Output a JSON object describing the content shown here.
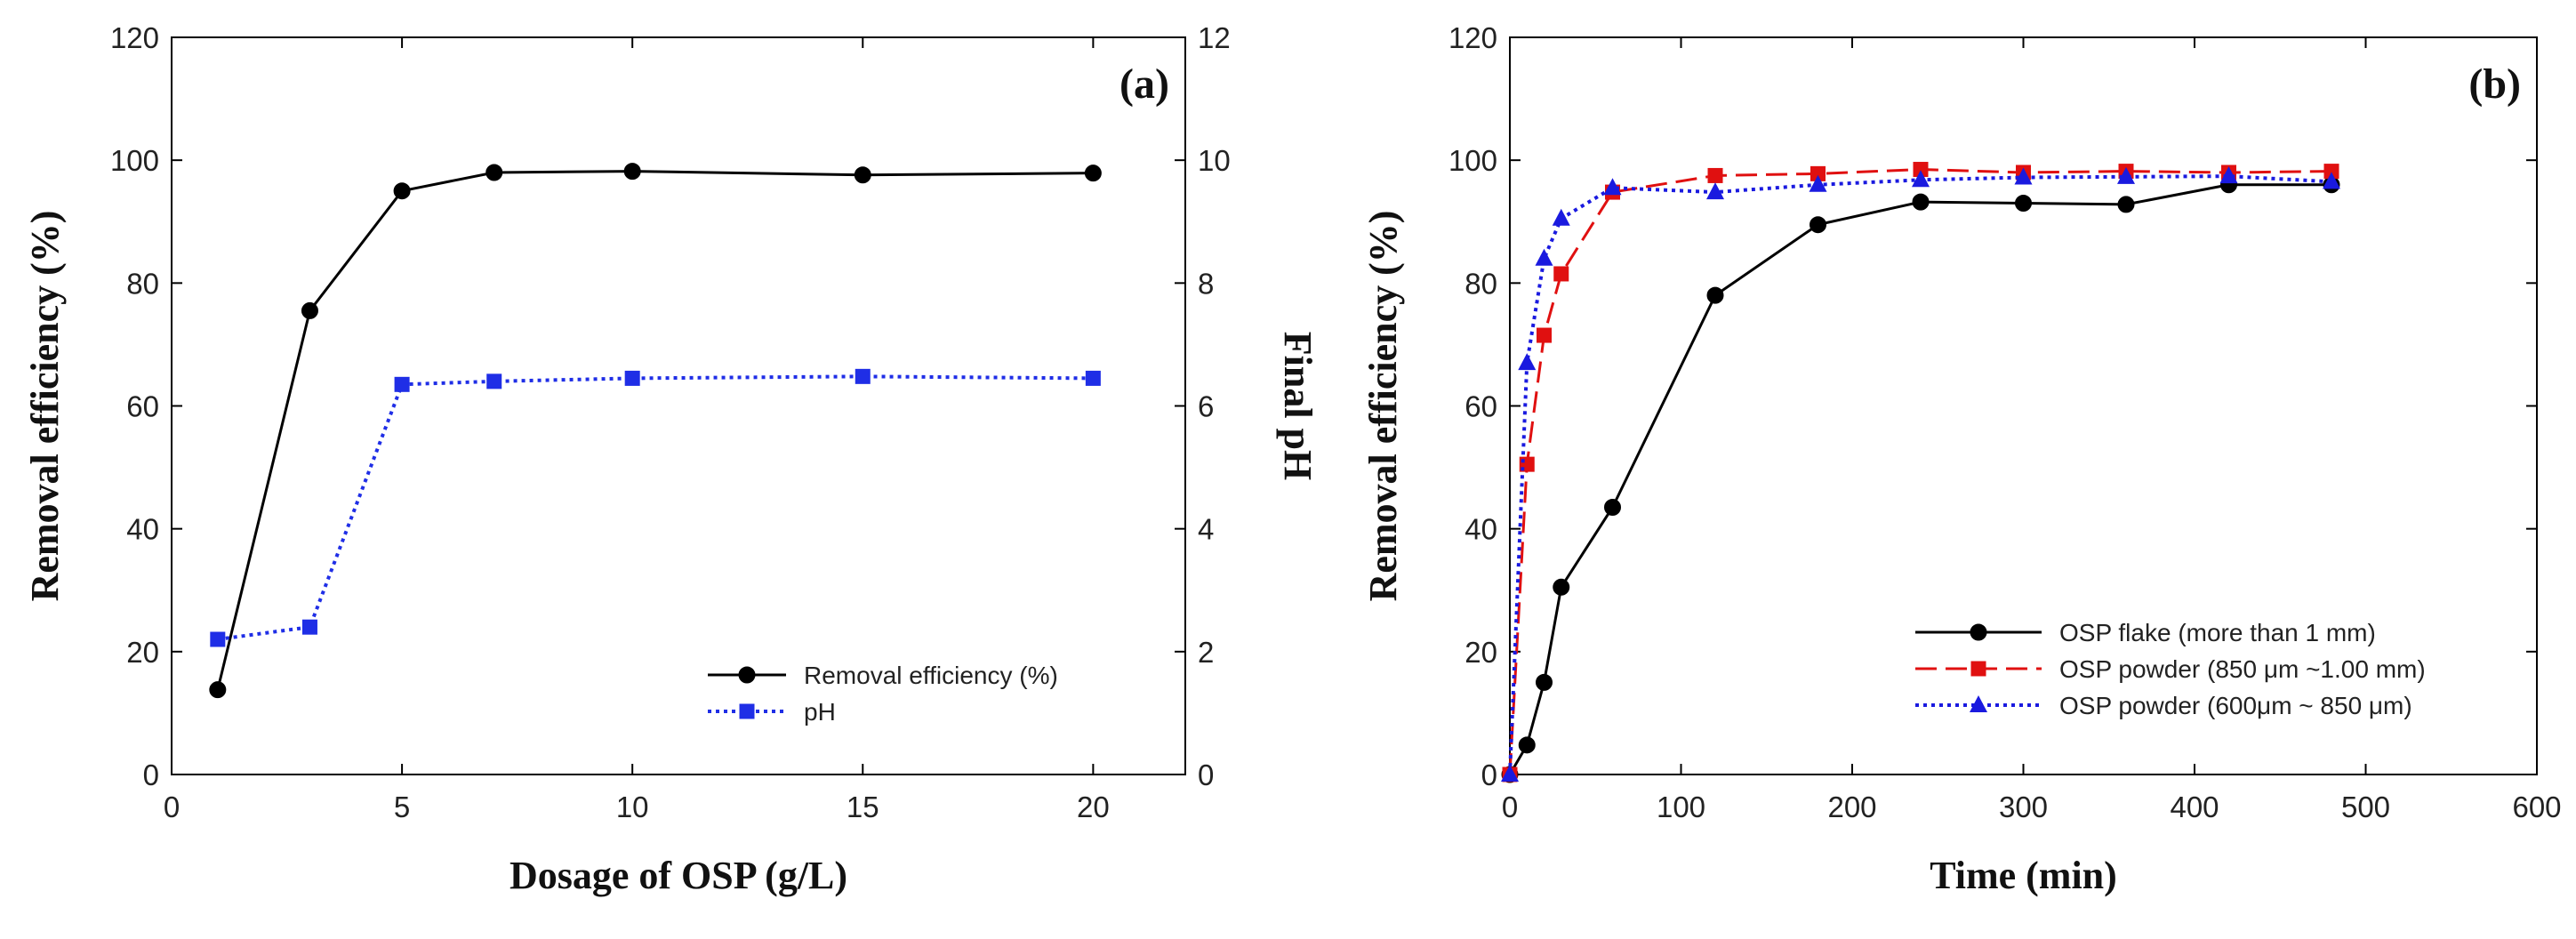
{
  "chart_data": [
    {
      "type": "line",
      "panel_label": "(a)",
      "xlabel": "Dosage of OSP (g/L)",
      "ylabel": "Removal efficiency (%)",
      "y2label": "Final pH",
      "xlim": [
        0,
        22
      ],
      "ylim": [
        0,
        120
      ],
      "y2lim": [
        0,
        12
      ],
      "xticks": [
        0,
        5,
        10,
        15,
        20
      ],
      "yticks": [
        0,
        20,
        40,
        60,
        80,
        100,
        120
      ],
      "y2ticks": [
        0,
        2,
        4,
        6,
        8,
        10,
        12
      ],
      "legend_position": "bottom-right",
      "series": [
        {
          "name": "Removal efficiency (%)",
          "axis": "left",
          "color": "#000000",
          "marker": "circle",
          "line": "solid",
          "x": [
            1,
            3,
            5,
            7,
            10,
            15,
            20
          ],
          "y": [
            13.8,
            75.5,
            95,
            98,
            98.2,
            97.6,
            97.9
          ]
        },
        {
          "name": "pH",
          "axis": "right",
          "color": "#1f2ee6",
          "marker": "square",
          "line": "dotted",
          "x": [
            1,
            3,
            5,
            7,
            10,
            15,
            20
          ],
          "y": [
            2.2,
            2.4,
            6.35,
            6.4,
            6.45,
            6.48,
            6.45
          ]
        }
      ]
    },
    {
      "type": "line",
      "panel_label": "(b)",
      "xlabel": "Time (min)",
      "ylabel": "Removal efficiency (%)",
      "xlim": [
        0,
        600
      ],
      "ylim": [
        0,
        120
      ],
      "xticks": [
        0,
        100,
        200,
        300,
        400,
        500,
        600
      ],
      "yticks": [
        0,
        20,
        40,
        60,
        80,
        100,
        120
      ],
      "legend_position": "bottom-right",
      "series": [
        {
          "name": "OSP flake (more than 1 mm)",
          "color": "#000000",
          "marker": "circle",
          "line": "solid",
          "x": [
            0,
            10,
            20,
            30,
            60,
            120,
            180,
            240,
            300,
            360,
            420,
            480
          ],
          "y": [
            0,
            4.8,
            15,
            30.5,
            43.5,
            78,
            89.5,
            93.2,
            93,
            92.8,
            96,
            96
          ]
        },
        {
          "name": "OSP powder (850 μm ~1.00 mm)",
          "color": "#e01010",
          "marker": "square",
          "line": "dashed",
          "x": [
            0,
            10,
            20,
            30,
            60,
            120,
            180,
            240,
            300,
            360,
            420,
            480
          ],
          "y": [
            0,
            50.5,
            71.5,
            81.5,
            94.8,
            97.5,
            97.8,
            98.5,
            98,
            98.2,
            98,
            98.2
          ]
        },
        {
          "name": "OSP powder (600μm ~ 850 μm)",
          "color": "#1a1adf",
          "marker": "triangle",
          "line": "dotted",
          "x": [
            0,
            10,
            20,
            30,
            60,
            120,
            180,
            240,
            300,
            360,
            420,
            480
          ],
          "y": [
            0,
            67,
            84,
            90.5,
            95.5,
            94.8,
            96,
            96.8,
            97.2,
            97.3,
            97.4,
            96.5
          ]
        }
      ]
    }
  ]
}
